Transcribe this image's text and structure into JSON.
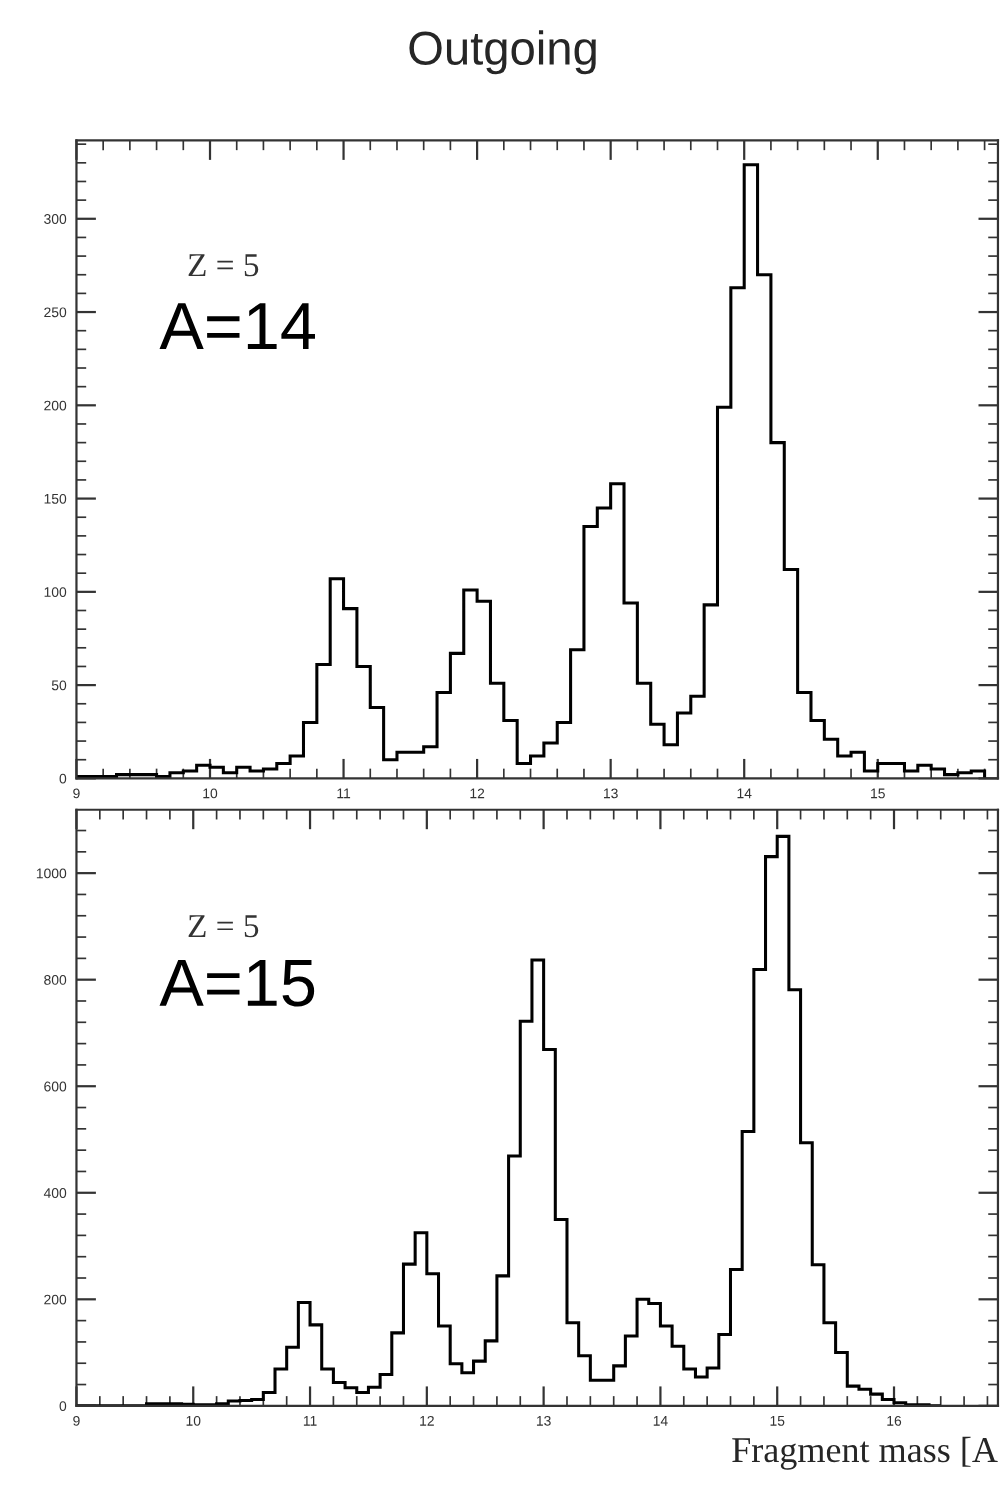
{
  "chart_data": [
    {
      "type": "histogram",
      "title": "Outgoing",
      "annotations": [
        "Z = 5",
        "A=14"
      ],
      "color": "#000000",
      "bins": [
        9.0,
        9.1,
        9.2,
        9.3,
        9.4,
        9.5,
        9.6,
        9.7,
        9.8,
        9.9,
        10.0,
        10.1,
        10.2,
        10.3,
        10.4,
        10.5,
        10.6,
        10.7,
        10.8,
        10.9,
        11.0,
        11.1,
        11.2,
        11.3,
        11.4,
        11.5,
        11.6,
        11.7,
        11.8,
        11.9,
        12.0,
        12.1,
        12.2,
        12.3,
        12.4,
        12.5,
        12.6,
        12.7,
        12.8,
        12.9,
        13.0,
        13.1,
        13.2,
        13.3,
        13.4,
        13.5,
        13.6,
        13.7,
        13.8,
        13.9,
        14.0,
        14.1,
        14.2,
        14.3,
        14.4,
        14.5,
        14.6,
        14.7,
        14.8,
        14.9,
        15.0,
        15.1,
        15.2,
        15.3,
        15.4,
        15.5,
        15.6,
        15.7,
        15.8
      ],
      "values": [
        1,
        1,
        1,
        2,
        2,
        2,
        1,
        3,
        4,
        7,
        6,
        3,
        6,
        4,
        5,
        8,
        12,
        30,
        61,
        107,
        91,
        60,
        38,
        10,
        14,
        14,
        17,
        46,
        67,
        101,
        95,
        51,
        31,
        8,
        12,
        19,
        30,
        69,
        135,
        145,
        158,
        94,
        51,
        29,
        18,
        35,
        44,
        93,
        199,
        263,
        329,
        270,
        180,
        112,
        46,
        31,
        21,
        12,
        14,
        4,
        8,
        8,
        4,
        7,
        5,
        2,
        3,
        4
      ],
      "xlim": [
        9,
        15.9
      ],
      "ylim": [
        0,
        342
      ],
      "xticks": [
        9,
        10,
        11,
        12,
        13,
        14,
        15
      ],
      "yticks": [
        0,
        50,
        100,
        150,
        200,
        250,
        300
      ]
    },
    {
      "type": "histogram",
      "xlabel": "Fragment mass [A",
      "annotations": [
        "Z = 5",
        "A=15"
      ],
      "color": "#000000",
      "bins": [
        9.0,
        9.1,
        9.2,
        9.3,
        9.4,
        9.5,
        9.6,
        9.7,
        9.8,
        9.9,
        10.0,
        10.1,
        10.2,
        10.3,
        10.4,
        10.5,
        10.6,
        10.7,
        10.8,
        10.9,
        11.0,
        11.1,
        11.2,
        11.3,
        11.4,
        11.5,
        11.6,
        11.7,
        11.8,
        11.9,
        12.0,
        12.1,
        12.2,
        12.3,
        12.4,
        12.5,
        12.6,
        12.7,
        12.8,
        12.9,
        13.0,
        13.1,
        13.2,
        13.3,
        13.4,
        13.5,
        13.6,
        13.7,
        13.8,
        13.9,
        14.0,
        14.1,
        14.2,
        14.3,
        14.4,
        14.5,
        14.6,
        14.7,
        14.8,
        14.9,
        15.0,
        15.1,
        15.2,
        15.3,
        15.4,
        15.5,
        15.6,
        15.7,
        15.8,
        15.9,
        16.0,
        16.1,
        16.2,
        16.3,
        16.4
      ],
      "values": [
        0,
        0,
        0,
        0,
        0,
        0,
        4,
        4,
        4,
        3,
        2,
        2,
        4,
        9,
        10,
        12,
        25,
        69,
        110,
        194,
        152,
        69,
        44,
        34,
        25,
        35,
        59,
        137,
        266,
        325,
        248,
        150,
        79,
        62,
        84,
        122,
        244,
        469,
        722,
        837,
        669,
        350,
        156,
        94,
        48,
        48,
        75,
        131,
        200,
        192,
        150,
        112,
        69,
        54,
        71,
        134,
        256,
        515,
        819,
        1031,
        1069,
        781,
        494,
        265,
        156,
        100,
        37,
        31,
        22,
        12,
        6,
        2,
        2,
        0
      ],
      "xlim": [
        9,
        16.89
      ],
      "ylim": [
        0,
        1119
      ],
      "xticks": [
        9,
        10,
        11,
        12,
        13,
        14,
        15,
        16
      ],
      "yticks": [
        0,
        200,
        400,
        600,
        800,
        1000
      ]
    }
  ]
}
